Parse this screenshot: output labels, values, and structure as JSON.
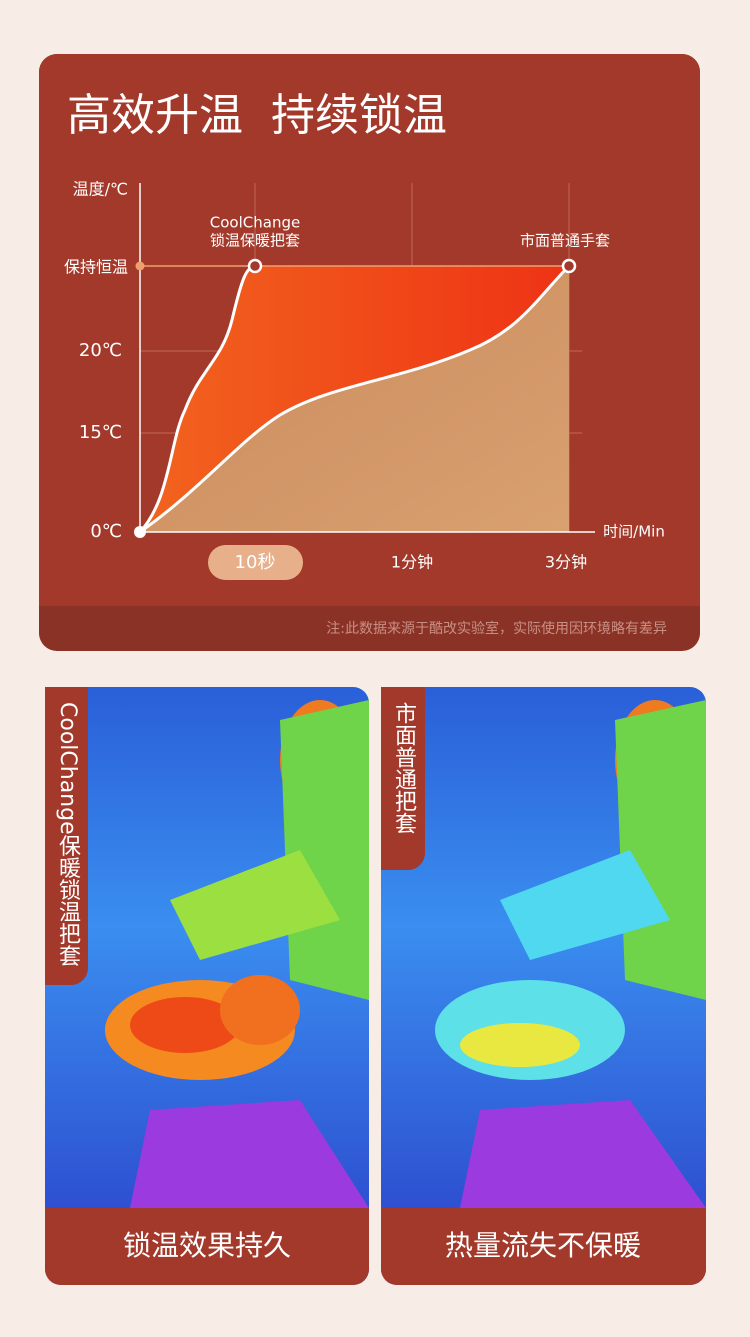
{
  "title": "高效升温  持续锁温",
  "chart": {
    "y_axis_title": "温度/℃",
    "y_labels": [
      "保持恒温",
      "20℃",
      "15℃",
      "0℃"
    ],
    "x_axis_title": "时间/Min",
    "x_labels": [
      "10秒",
      "1分钟",
      "3分钟"
    ],
    "annotations": [
      "CoolChange",
      "锁温保暖把套",
      "市面普通手套"
    ]
  },
  "note": "注:此数据来源于酷改实验室，实际使用因环境略有差异",
  "panels": [
    {
      "tag": "CoolChange保暖锁温把套",
      "caption": "锁温效果持久"
    },
    {
      "tag": "市面普通把套",
      "caption": "热量流失不保暖"
    }
  ]
}
